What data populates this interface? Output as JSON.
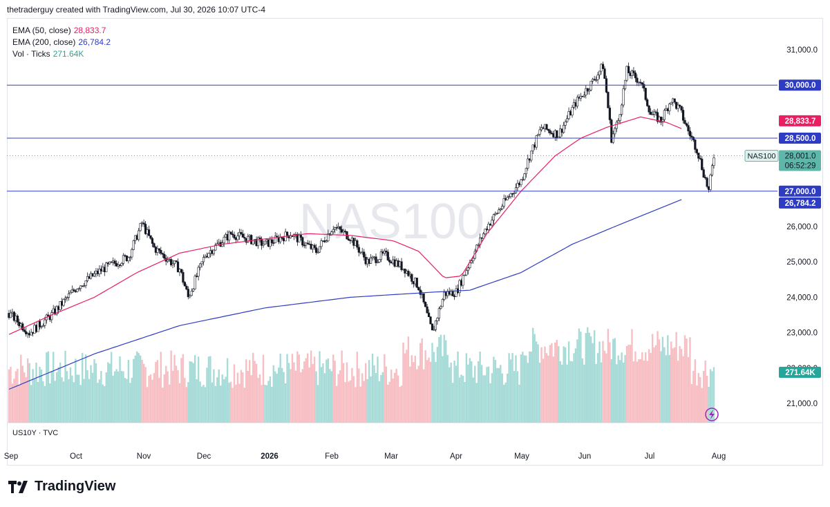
{
  "header": {
    "text": "thetraderguy created with TradingView.com, Jul 30, 2026 10:07 UTC-4"
  },
  "watermark": "NAS100",
  "legend": [
    {
      "label": "EMA (50, close)",
      "value": "28,833.7",
      "color": "#e91e63"
    },
    {
      "label": "EMA (200, close)",
      "value": "26,784.2",
      "color": "#2e3cc4"
    },
    {
      "label": "Vol · Ticks",
      "value": "271.64K",
      "color": "#26a69a"
    }
  ],
  "subpane_label": "US10Y · TVC",
  "brand": "TradingView",
  "chart_data": {
    "type": "candlestick",
    "symbol": "NAS100",
    "last_price": "28,001.0",
    "countdown": "06:52:29",
    "y_ticks": [
      21000,
      22000,
      23000,
      24000,
      25000,
      26000,
      27000,
      28000,
      29000,
      30000,
      31000
    ],
    "y_tick_labels": [
      "21,000.0",
      "22,000.0",
      "23,000.0",
      "24,000.0",
      "25,000.0",
      "26,000.0",
      "27,000.0",
      "28,000.0",
      "29,000.0",
      "30,000.0",
      "31,000.0"
    ],
    "x_labels": [
      "Sep",
      "Oct",
      "Nov",
      "Dec",
      "2026",
      "Feb",
      "Mar",
      "Apr",
      "May",
      "Jun",
      "Jul",
      "Aug"
    ],
    "horizontal_levels": [
      {
        "value": 30000,
        "label": "30,000.0"
      },
      {
        "value": 28500,
        "label": "28,500.0"
      },
      {
        "value": 27000,
        "label": "27,000.0"
      }
    ],
    "ema50": {
      "value": 28833.7,
      "label": "28,833.7",
      "points": [
        [
          0,
          22950
        ],
        [
          25,
          23500
        ],
        [
          50,
          24000
        ],
        [
          75,
          24700
        ],
        [
          100,
          25250
        ],
        [
          125,
          25500
        ],
        [
          150,
          25650
        ],
        [
          175,
          25800
        ],
        [
          200,
          25750
        ],
        [
          225,
          25600
        ],
        [
          240,
          25300
        ],
        [
          255,
          24550
        ],
        [
          265,
          24600
        ],
        [
          280,
          25800
        ],
        [
          300,
          27000
        ],
        [
          320,
          28000
        ],
        [
          335,
          28500
        ],
        [
          350,
          28800
        ],
        [
          370,
          29100
        ],
        [
          385,
          28950
        ],
        [
          395,
          28750
        ]
      ]
    },
    "ema200": {
      "value": 26784.2,
      "label": "26,784.2",
      "points": [
        [
          0,
          21400
        ],
        [
          50,
          22400
        ],
        [
          100,
          23200
        ],
        [
          150,
          23700
        ],
        [
          200,
          24000
        ],
        [
          250,
          24150
        ],
        [
          270,
          24200
        ],
        [
          300,
          24700
        ],
        [
          330,
          25500
        ],
        [
          360,
          26100
        ],
        [
          395,
          26784
        ]
      ]
    },
    "candle_anchors": [
      [
        0,
        23550
      ],
      [
        12,
        23000
      ],
      [
        25,
        23500
      ],
      [
        40,
        24300
      ],
      [
        55,
        24800
      ],
      [
        70,
        25150
      ],
      [
        78,
        26100
      ],
      [
        85,
        25400
      ],
      [
        100,
        24800
      ],
      [
        105,
        24000
      ],
      [
        115,
        25200
      ],
      [
        130,
        25800
      ],
      [
        150,
        25500
      ],
      [
        165,
        25800
      ],
      [
        180,
        25300
      ],
      [
        190,
        26000
      ],
      [
        200,
        25700
      ],
      [
        210,
        25000
      ],
      [
        220,
        25200
      ],
      [
        232,
        24800
      ],
      [
        240,
        24300
      ],
      [
        248,
        23000
      ],
      [
        255,
        24100
      ],
      [
        262,
        24150
      ],
      [
        270,
        25000
      ],
      [
        280,
        26000
      ],
      [
        292,
        26800
      ],
      [
        300,
        27300
      ],
      [
        305,
        28000
      ],
      [
        312,
        28800
      ],
      [
        322,
        28600
      ],
      [
        332,
        29500
      ],
      [
        342,
        30100
      ],
      [
        348,
        30550
      ],
      [
        350,
        29800
      ],
      [
        353,
        28500
      ],
      [
        357,
        29000
      ],
      [
        362,
        30400
      ],
      [
        370,
        30100
      ],
      [
        376,
        29200
      ],
      [
        382,
        29000
      ],
      [
        388,
        29600
      ],
      [
        393,
        29300
      ],
      [
        398,
        28700
      ],
      [
        403,
        28200
      ],
      [
        410,
        27000
      ],
      [
        413,
        28000
      ]
    ],
    "volume": {
      "value": "271.64K",
      "max": 340
    }
  }
}
